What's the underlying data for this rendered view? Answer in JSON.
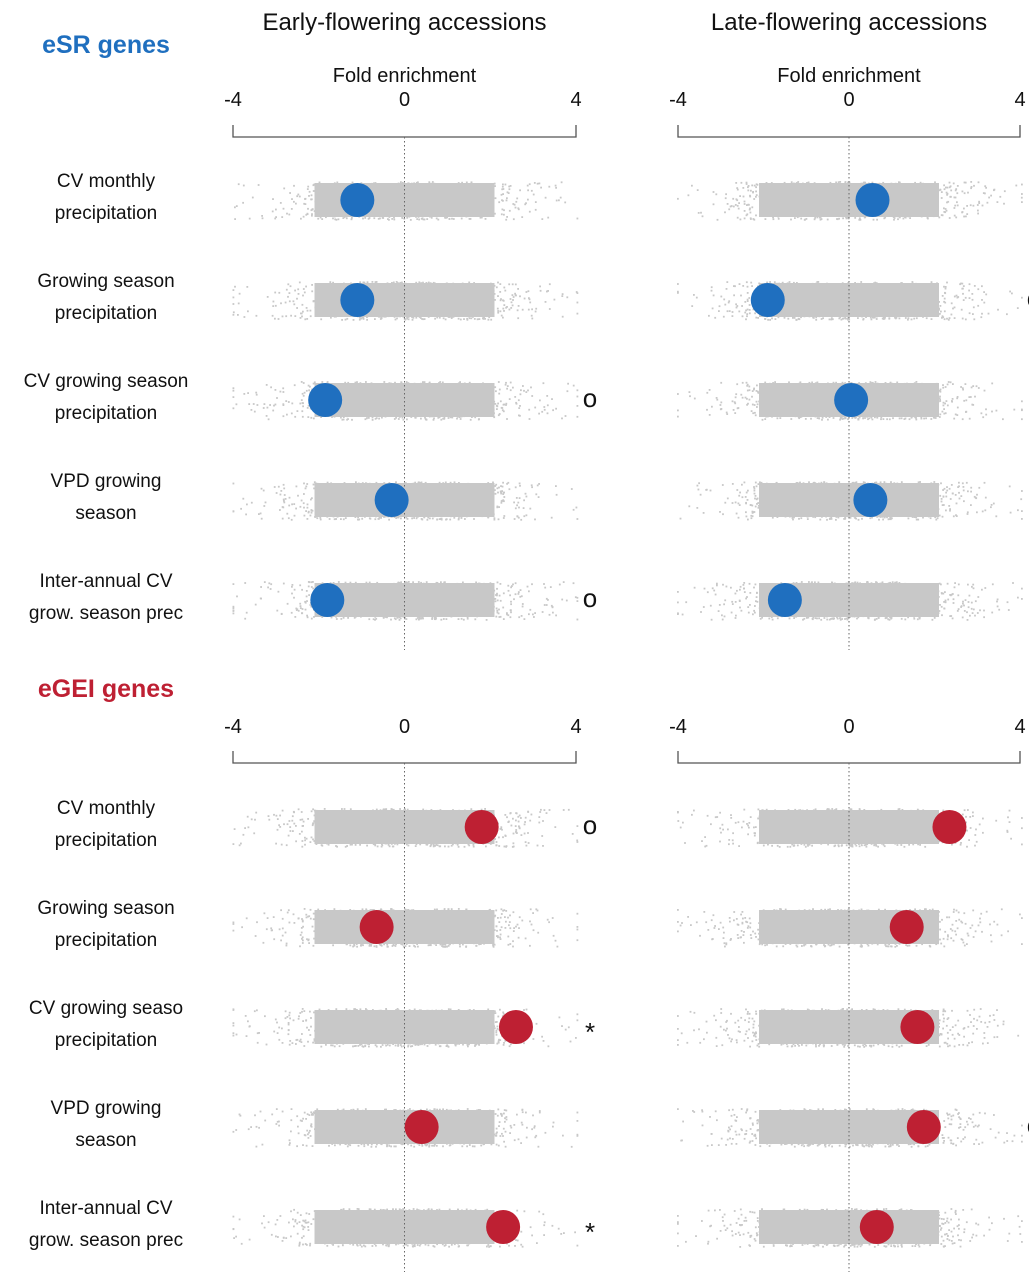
{
  "chart_data": {
    "type": "scatter",
    "xlim": [
      -4,
      4
    ],
    "xticks": [
      "-4",
      "0",
      "4"
    ],
    "columns": [
      {
        "id": "early",
        "title": "Early-flowering accessions"
      },
      {
        "id": "late",
        "title": "Late-flowering accessions"
      }
    ],
    "axis_label": "Fold enrichment",
    "colors": {
      "eSR": "#1f6fbf",
      "eGEI": "#be2033",
      "null": "#c8c8c8"
    },
    "panels": [
      {
        "section": "eSR genes",
        "color": "#1f6fbf",
        "rows": [
          {
            "label": [
              "CV monthly",
              "precipitation"
            ],
            "early": -1.1,
            "late": 0.55,
            "early_mark": "",
            "late_mark": ""
          },
          {
            "label": [
              "Growing season",
              "precipitation"
            ],
            "early": -1.1,
            "late": -1.9,
            "early_mark": "",
            "late_mark": "o"
          },
          {
            "label": [
              "CV growing season",
              "precipitation"
            ],
            "early": -1.85,
            "late": 0.05,
            "early_mark": "o",
            "late_mark": ""
          },
          {
            "label": [
              "VPD growing",
              "season"
            ],
            "early": -0.3,
            "late": 0.5,
            "early_mark": "",
            "late_mark": ""
          },
          {
            "label": [
              "Inter-annual CV",
              "grow. season prec"
            ],
            "early": -1.8,
            "late": -1.5,
            "early_mark": "o",
            "late_mark": ""
          }
        ]
      },
      {
        "section": "eGEI genes",
        "color": "#be2033",
        "rows": [
          {
            "label": [
              "CV monthly",
              "precipitation"
            ],
            "early": 1.8,
            "late": 2.35,
            "early_mark": "o",
            "late_mark": "*"
          },
          {
            "label": [
              "Growing season",
              "precipitation"
            ],
            "early": -0.65,
            "late": 1.35,
            "early_mark": "",
            "late_mark": ""
          },
          {
            "label": [
              "CV growing seaso",
              "precipitation"
            ],
            "early": 2.6,
            "late": 1.6,
            "early_mark": "*",
            "late_mark": ""
          },
          {
            "label": [
              "VPD growing",
              "season"
            ],
            "early": 0.4,
            "late": 1.75,
            "early_mark": "",
            "late_mark": "o"
          },
          {
            "label": [
              "Inter-annual CV",
              "grow. season prec"
            ],
            "early": 2.3,
            "late": 0.65,
            "early_mark": "*",
            "late_mark": ""
          }
        ]
      }
    ]
  }
}
